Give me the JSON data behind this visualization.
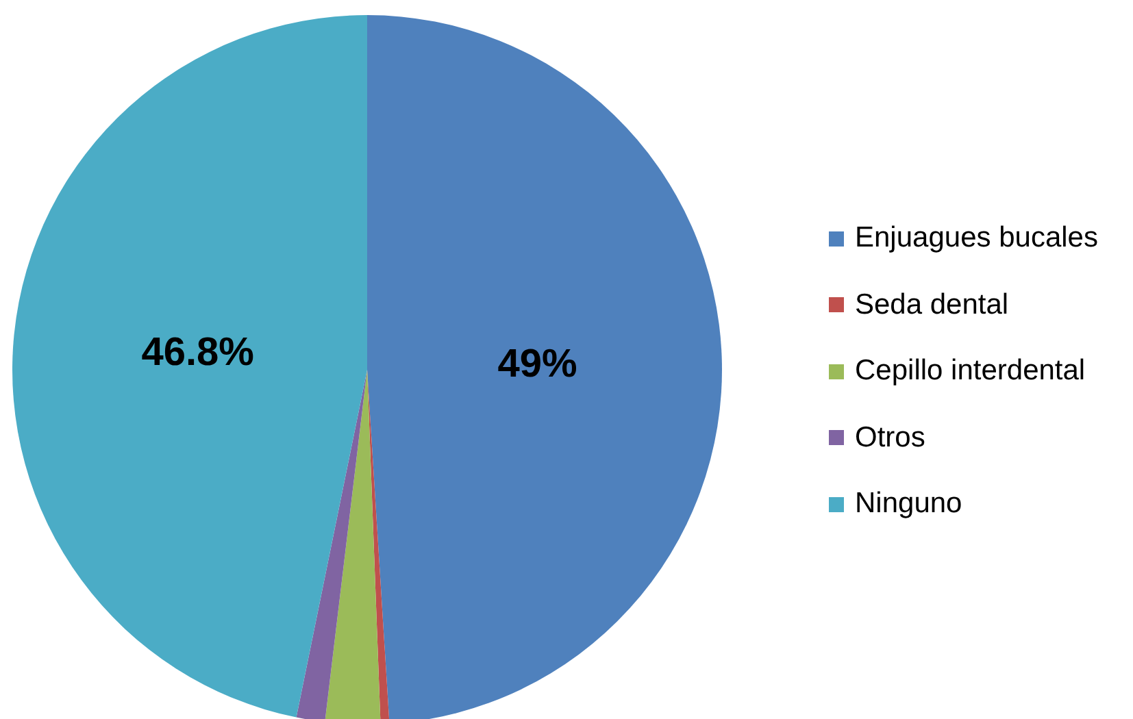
{
  "chart_data": {
    "type": "pie",
    "categories": [
      "Enjuagues bucales",
      "Seda dental",
      "Cepillo interdental",
      "Otros",
      "Ninguno"
    ],
    "values": [
      49,
      0.4,
      2.5,
      1.3,
      46.8
    ],
    "colors": [
      "#4f81bd",
      "#c0504d",
      "#9bbb59",
      "#8064a2",
      "#4bacc6"
    ],
    "value_labels": [
      "49%",
      null,
      null,
      null,
      "46.8%"
    ],
    "legend": "right"
  }
}
